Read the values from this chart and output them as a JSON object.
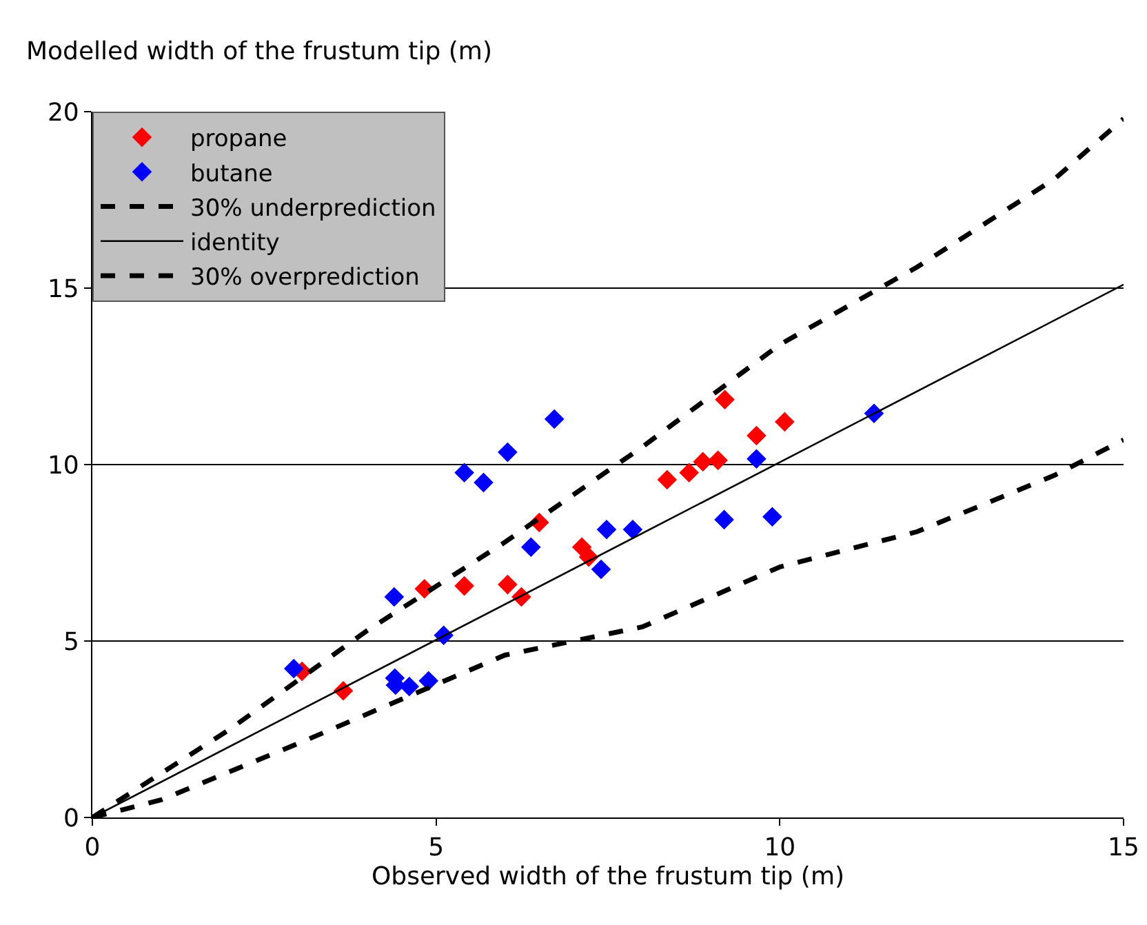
{
  "chart_data": {
    "type": "scatter",
    "ylabel": "Modelled width of the frustum tip (m)",
    "xlabel": "Observed width of the frustum tip (m)",
    "xlim": [
      0,
      15
    ],
    "xticks": [
      0,
      5,
      10,
      15
    ],
    "ylim": [
      0,
      20
    ],
    "yticks": [
      0,
      5,
      10,
      15,
      20
    ],
    "grid": "y",
    "legend": "top left",
    "marker": "diamond",
    "series": [
      {
        "name": "propane",
        "color": "#ff0000",
        "x": [
          3.05,
          3.65,
          4.83,
          5.41,
          6.04,
          6.24,
          6.5,
          7.12,
          7.22,
          8.36,
          8.68,
          8.88,
          9.1,
          9.2,
          9.66,
          10.07
        ],
        "values": [
          4.14,
          3.59,
          6.48,
          6.56,
          6.6,
          6.25,
          8.36,
          7.66,
          7.38,
          9.57,
          9.77,
          10.08,
          10.12,
          11.84,
          10.82,
          11.21
        ]
      },
      {
        "name": "butane",
        "color": "#0000ff",
        "x": [
          2.93,
          4.39,
          4.4,
          4.41,
          4.61,
          4.89,
          5.11,
          5.41,
          5.69,
          6.04,
          6.38,
          6.72,
          7.4,
          7.48,
          7.86,
          9.19,
          9.89,
          9.66,
          11.37
        ],
        "values": [
          4.22,
          6.25,
          3.95,
          3.75,
          3.71,
          3.87,
          5.16,
          9.77,
          9.49,
          10.35,
          7.66,
          11.29,
          7.03,
          8.16,
          8.16,
          8.44,
          8.52,
          10.16,
          11.45
        ]
      },
      {
        "name": "30% underprediction",
        "type": "line",
        "color": "#000000",
        "line_style": "dashed",
        "marker": "none",
        "x": [
          0,
          2,
          4,
          6,
          8,
          10,
          12,
          14,
          15
        ],
        "values": [
          0,
          2.5,
          5.3,
          7.8,
          10.5,
          13.4,
          15.6,
          18.1,
          19.8
        ]
      },
      {
        "name": "identity",
        "type": "line",
        "color": "#000000",
        "line_style": "solid",
        "marker": "none",
        "x": [
          0,
          15
        ],
        "values": [
          0,
          15.1
        ]
      },
      {
        "name": "30% overprediction",
        "type": "line",
        "color": "#000000",
        "line_style": "dashed",
        "marker": "none",
        "x": [
          0,
          1,
          3,
          6,
          8,
          10,
          12,
          14,
          15
        ],
        "values": [
          0,
          0.5,
          2.1,
          4.6,
          5.4,
          7.1,
          8.1,
          9.7,
          10.7
        ]
      }
    ]
  }
}
